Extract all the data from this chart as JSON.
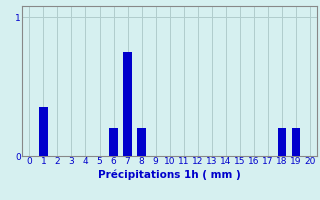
{
  "categories": [
    0,
    1,
    2,
    3,
    4,
    5,
    6,
    7,
    8,
    9,
    10,
    11,
    12,
    13,
    14,
    15,
    16,
    17,
    18,
    19,
    20
  ],
  "values": [
    0,
    0.35,
    0,
    0,
    0,
    0,
    0.2,
    0.75,
    0.2,
    0,
    0,
    0,
    0,
    0,
    0,
    0,
    0,
    0,
    0.2,
    0.2,
    0
  ],
  "bar_color": "#0000cc",
  "background_color": "#d6f0f0",
  "grid_color": "#b0cccc",
  "axis_color": "#888888",
  "xlabel": "Précipitations 1h ( mm )",
  "xlabel_color": "#0000cc",
  "tick_label_color": "#0000cc",
  "ytick_labels": [
    "0",
    "1"
  ],
  "ytick_values": [
    0,
    1
  ],
  "ylim": [
    0,
    1.08
  ],
  "xlim": [
    -0.5,
    20.5
  ],
  "tick_fontsize": 6.5,
  "xlabel_fontsize": 7.5,
  "bar_width": 0.6
}
